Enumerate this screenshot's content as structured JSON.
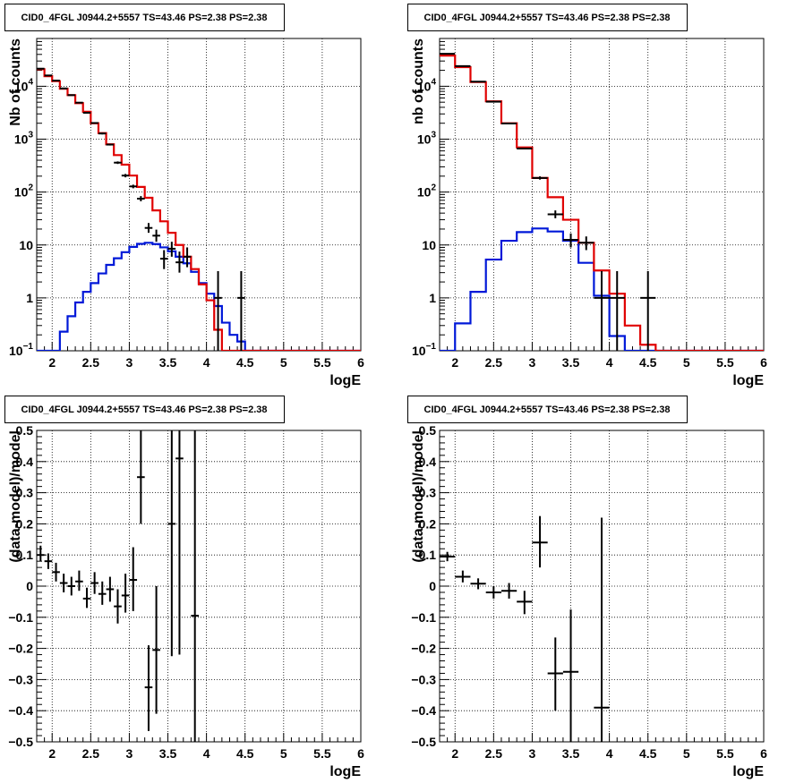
{
  "colors": {
    "background": "#ffffff",
    "frame": "#000000",
    "grid": "#000000",
    "data_points": "#000000",
    "total_model": "#e00000",
    "source_model": "#0018d8"
  },
  "chart_data": [
    {
      "type": "line",
      "title": "CID0_4FGL J0944.2+5557 TS=43.46 PS=2.38 PS=2.38",
      "xlabel": "logE",
      "ylabel": "Nb of counts",
      "xlim": [
        1.8,
        6.0
      ],
      "ylim": [
        0.1,
        80000
      ],
      "yscale": "log",
      "grid": true,
      "xticks": [
        2,
        2.5,
        3,
        3.5,
        4,
        4.5,
        5,
        5.5,
        6
      ],
      "xtick_labels": [
        "2",
        "2.5",
        "3",
        "3.5",
        "4",
        "4.5",
        "5",
        "5.5",
        "6"
      ],
      "yticks": [
        0.1,
        1,
        10,
        100,
        1000,
        10000
      ],
      "ytick_labels": [
        {
          "base": "10",
          "exp": "−1"
        },
        {
          "base": "1",
          "exp": ""
        },
        {
          "base": "10",
          "exp": ""
        },
        {
          "base": "10",
          "exp": "2"
        },
        {
          "base": "10",
          "exp": "3"
        },
        {
          "base": "10",
          "exp": "4"
        }
      ],
      "bin_edges": [
        1.8,
        1.9,
        2.0,
        2.1,
        2.2,
        2.3,
        2.4,
        2.5,
        2.6,
        2.7,
        2.8,
        2.9,
        3.0,
        3.1,
        3.2,
        3.3,
        3.4,
        3.5,
        3.6,
        3.7,
        3.8,
        3.9,
        4.0,
        4.1,
        4.2,
        4.3,
        4.4,
        4.5,
        4.6,
        4.7,
        4.8,
        4.9,
        5.0,
        5.1,
        5.2,
        5.3,
        5.4,
        5.5,
        5.6,
        5.7,
        5.8,
        5.9,
        6.0
      ],
      "series": [
        {
          "role": "total_model",
          "values": [
            21000,
            15500,
            12500,
            9000,
            6800,
            4800,
            3300,
            2000,
            1300,
            800,
            500,
            330,
            205,
            125,
            78,
            45,
            28,
            17,
            10,
            6,
            3.5,
            1.8,
            0.9,
            0.25,
            0.1,
            0.1,
            0.1,
            0.1,
            0.1,
            0.1,
            0.1,
            0.1,
            0.1,
            0.1,
            0.1,
            0.1,
            0.1,
            0.1,
            0.1,
            0.1,
            0.1,
            0.1
          ]
        },
        {
          "role": "source_model",
          "values": [
            0.1,
            0.1,
            0.1,
            0.23,
            0.45,
            0.82,
            1.3,
            1.9,
            2.9,
            4.2,
            5.6,
            7.3,
            9.2,
            10.5,
            11,
            10.4,
            9,
            7.6,
            6,
            4.5,
            3.1,
            1.9,
            1.2,
            0.7,
            0.34,
            0.2,
            0.15,
            0.1,
            0.1,
            0.1,
            0.1,
            0.1,
            0.1,
            0.1,
            0.1,
            0.1,
            0.1,
            0.1,
            0.1,
            0.1,
            0.1,
            0.1
          ]
        }
      ],
      "points": [
        {
          "x": 1.85,
          "xerr": 0.05,
          "y": 21500,
          "ylo": 21200,
          "yhi": 21800
        },
        {
          "x": 1.95,
          "xerr": 0.05,
          "y": 16000,
          "ylo": 15700,
          "yhi": 16300
        },
        {
          "x": 2.05,
          "xerr": 0.05,
          "y": 12800,
          "ylo": 12500,
          "yhi": 13100
        },
        {
          "x": 2.15,
          "xerr": 0.05,
          "y": 9100,
          "ylo": 8900,
          "yhi": 9300
        },
        {
          "x": 2.25,
          "xerr": 0.05,
          "y": 6800,
          "ylo": 6650,
          "yhi": 6950
        },
        {
          "x": 2.35,
          "xerr": 0.05,
          "y": 4900,
          "ylo": 4780,
          "yhi": 5020
        },
        {
          "x": 2.45,
          "xerr": 0.05,
          "y": 3150,
          "ylo": 3050,
          "yhi": 3250
        },
        {
          "x": 2.55,
          "xerr": 0.05,
          "y": 2020,
          "ylo": 1950,
          "yhi": 2090
        },
        {
          "x": 2.65,
          "xerr": 0.05,
          "y": 1280,
          "ylo": 1230,
          "yhi": 1330
        },
        {
          "x": 2.75,
          "xerr": 0.05,
          "y": 790,
          "ylo": 760,
          "yhi": 820
        },
        {
          "x": 2.85,
          "xerr": 0.05,
          "y": 360,
          "ylo": 340,
          "yhi": 380
        },
        {
          "x": 2.95,
          "xerr": 0.05,
          "y": 205,
          "ylo": 190,
          "yhi": 220
        },
        {
          "x": 3.05,
          "xerr": 0.05,
          "y": 128,
          "ylo": 118,
          "yhi": 138
        },
        {
          "x": 3.15,
          "xerr": 0.05,
          "y": 75,
          "ylo": 67,
          "yhi": 84
        },
        {
          "x": 3.25,
          "xerr": 0.05,
          "y": 21,
          "ylo": 17,
          "yhi": 26
        },
        {
          "x": 3.35,
          "xerr": 0.05,
          "y": 15,
          "ylo": 11.5,
          "yhi": 19.5
        },
        {
          "x": 3.45,
          "xerr": 0.05,
          "y": 5.5,
          "ylo": 3.5,
          "yhi": 8.0
        },
        {
          "x": 3.55,
          "xerr": 0.05,
          "y": 8.5,
          "ylo": 6.0,
          "yhi": 11.5
        },
        {
          "x": 3.65,
          "xerr": 0.05,
          "y": 4.7,
          "ylo": 3.0,
          "yhi": 7.5
        },
        {
          "x": 3.75,
          "xerr": 0.05,
          "y": 6.0,
          "ylo": 3.8,
          "yhi": 9.0
        },
        {
          "x": 4.15,
          "xerr": 0.05,
          "y": 1.0,
          "ylo": 0.1,
          "yhi": 3.2
        },
        {
          "x": 4.45,
          "xerr": 0.05,
          "y": 1.0,
          "ylo": 0.1,
          "yhi": 3.2
        }
      ]
    },
    {
      "type": "line",
      "title": "CID0_4FGL J0944.2+5557 TS=43.46 PS=2.38 PS=2.38",
      "xlabel": "logE",
      "ylabel": "nb of counts",
      "xlim": [
        1.8,
        6.0
      ],
      "ylim": [
        0.1,
        80000
      ],
      "yscale": "log",
      "grid": true,
      "xticks": [
        2,
        2.5,
        3,
        3.5,
        4,
        4.5,
        5,
        5.5,
        6
      ],
      "xtick_labels": [
        "2",
        "2.5",
        "3",
        "3.5",
        "4",
        "4.5",
        "5",
        "5.5",
        "6"
      ],
      "yticks": [
        0.1,
        1,
        10,
        100,
        1000,
        10000
      ],
      "ytick_labels": [
        {
          "base": "10",
          "exp": "−1"
        },
        {
          "base": "1",
          "exp": ""
        },
        {
          "base": "10",
          "exp": ""
        },
        {
          "base": "10",
          "exp": "2"
        },
        {
          "base": "10",
          "exp": "3"
        },
        {
          "base": "10",
          "exp": "4"
        }
      ],
      "bin_edges": [
        1.8,
        2.0,
        2.2,
        2.4,
        2.6,
        2.8,
        3.0,
        3.2,
        3.4,
        3.6,
        3.8,
        4.0,
        4.2,
        4.4,
        4.6,
        4.8,
        5.0,
        5.2,
        5.4,
        5.6,
        5.8,
        6.0
      ],
      "series": [
        {
          "role": "total_model",
          "values": [
            38000,
            23000,
            12000,
            5200,
            2000,
            700,
            185,
            80,
            30,
            11,
            3.3,
            1.2,
            0.3,
            0.13,
            0.1,
            0.1,
            0.1,
            0.1,
            0.1,
            0.1,
            0.1
          ]
        },
        {
          "role": "source_model",
          "values": [
            0.1,
            0.33,
            1.3,
            5.3,
            12,
            17.5,
            20.5,
            18,
            12,
            4.6,
            1.1,
            0.19,
            0.1,
            0.1,
            0.1,
            0.1,
            0.1,
            0.1,
            0.1,
            0.1,
            0.1
          ]
        }
      ],
      "points": [
        {
          "x": 1.9,
          "xerr": 0.1,
          "y": 41000,
          "ylo": 40500,
          "yhi": 41500
        },
        {
          "x": 2.1,
          "xerr": 0.1,
          "y": 24000,
          "ylo": 23700,
          "yhi": 24300
        },
        {
          "x": 2.3,
          "xerr": 0.1,
          "y": 12200,
          "ylo": 12000,
          "yhi": 12400
        },
        {
          "x": 2.5,
          "xerr": 0.1,
          "y": 5100,
          "ylo": 5000,
          "yhi": 5200
        },
        {
          "x": 2.7,
          "xerr": 0.1,
          "y": 1980,
          "ylo": 1930,
          "yhi": 2030
        },
        {
          "x": 2.9,
          "xerr": 0.1,
          "y": 665,
          "ylo": 640,
          "yhi": 690
        },
        {
          "x": 3.1,
          "xerr": 0.1,
          "y": 185,
          "ylo": 172,
          "yhi": 198
        },
        {
          "x": 3.3,
          "xerr": 0.1,
          "y": 38,
          "ylo": 32,
          "yhi": 45
        },
        {
          "x": 3.5,
          "xerr": 0.1,
          "y": 12.5,
          "ylo": 9,
          "yhi": 16.5
        },
        {
          "x": 3.7,
          "xerr": 0.1,
          "y": 11,
          "ylo": 8,
          "yhi": 14.5
        },
        {
          "x": 3.9,
          "xerr": 0.1,
          "y": 1.0,
          "ylo": 0.1,
          "yhi": 3.2
        },
        {
          "x": 4.1,
          "xerr": 0.1,
          "y": 1.0,
          "ylo": 0.1,
          "yhi": 3.2
        },
        {
          "x": 4.5,
          "xerr": 0.1,
          "y": 1.0,
          "ylo": 0.1,
          "yhi": 3.2
        }
      ]
    },
    {
      "type": "scatter",
      "title": "CID0_4FGL J0944.2+5557 TS=43.46 PS=2.38 PS=2.38",
      "xlabel": "logE",
      "ylabel": "(data-model)/model",
      "xlim": [
        1.8,
        6.0
      ],
      "ylim": [
        -0.5,
        0.5
      ],
      "yscale": "linear",
      "grid": true,
      "xticks": [
        2,
        2.5,
        3,
        3.5,
        4,
        4.5,
        5,
        5.5,
        6
      ],
      "xtick_labels": [
        "2",
        "2.5",
        "3",
        "3.5",
        "4",
        "4.5",
        "5",
        "5.5",
        "6"
      ],
      "yticks": [
        -0.5,
        -0.4,
        -0.3,
        -0.2,
        -0.1,
        0,
        0.1,
        0.2,
        0.3,
        0.4,
        0.5
      ],
      "ytick_labels": [
        "−0.5",
        "−0.4",
        "−0.3",
        "−0.2",
        "−0.1",
        "0",
        "0.1",
        "0.2",
        "0.3",
        "0.4",
        "0.5"
      ],
      "points": [
        {
          "x": 1.85,
          "xerr": 0.05,
          "y": 0.1,
          "ylo": 0.08,
          "yhi": 0.13
        },
        {
          "x": 1.95,
          "xerr": 0.05,
          "y": 0.08,
          "ylo": 0.055,
          "yhi": 0.105
        },
        {
          "x": 2.05,
          "xerr": 0.05,
          "y": 0.045,
          "ylo": 0.015,
          "yhi": 0.075
        },
        {
          "x": 2.15,
          "xerr": 0.05,
          "y": 0.01,
          "ylo": -0.02,
          "yhi": 0.04
        },
        {
          "x": 2.25,
          "xerr": 0.05,
          "y": 0.0,
          "ylo": -0.03,
          "yhi": 0.03
        },
        {
          "x": 2.35,
          "xerr": 0.05,
          "y": 0.015,
          "ylo": -0.015,
          "yhi": 0.05
        },
        {
          "x": 2.45,
          "xerr": 0.05,
          "y": -0.04,
          "ylo": -0.07,
          "yhi": -0.005
        },
        {
          "x": 2.55,
          "xerr": 0.05,
          "y": 0.01,
          "ylo": -0.025,
          "yhi": 0.045
        },
        {
          "x": 2.65,
          "xerr": 0.05,
          "y": -0.025,
          "ylo": -0.06,
          "yhi": 0.015
        },
        {
          "x": 2.75,
          "xerr": 0.05,
          "y": -0.01,
          "ylo": -0.05,
          "yhi": 0.03
        },
        {
          "x": 2.85,
          "xerr": 0.05,
          "y": -0.065,
          "ylo": -0.12,
          "yhi": -0.01
        },
        {
          "x": 2.95,
          "xerr": 0.05,
          "y": -0.03,
          "ylo": -0.085,
          "yhi": 0.04
        },
        {
          "x": 3.05,
          "xerr": 0.05,
          "y": 0.02,
          "ylo": -0.08,
          "yhi": 0.125
        },
        {
          "x": 3.15,
          "xerr": 0.05,
          "y": 0.35,
          "ylo": 0.2,
          "yhi": 0.5
        },
        {
          "x": 3.25,
          "xerr": 0.05,
          "y": -0.325,
          "ylo": -0.465,
          "yhi": -0.19
        },
        {
          "x": 3.35,
          "xerr": 0.05,
          "y": -0.205,
          "ylo": -0.41,
          "yhi": 0.0
        },
        {
          "x": 3.55,
          "xerr": 0.05,
          "y": 0.2,
          "ylo": -0.225,
          "yhi": 0.5
        },
        {
          "x": 3.65,
          "xerr": 0.05,
          "y": 0.41,
          "ylo": -0.22,
          "yhi": 0.5
        },
        {
          "x": 3.85,
          "xerr": 0.05,
          "y": -0.095,
          "ylo": -0.5,
          "yhi": 0.5
        }
      ]
    },
    {
      "type": "scatter",
      "title": "CID0_4FGL J0944.2+5557 TS=43.46 PS=2.38 PS=2.38",
      "xlabel": "logE",
      "ylabel": "(data-model)/model",
      "xlim": [
        1.8,
        6.0
      ],
      "ylim": [
        -0.5,
        0.5
      ],
      "yscale": "linear",
      "grid": true,
      "xticks": [
        2,
        2.5,
        3,
        3.5,
        4,
        4.5,
        5,
        5.5,
        6
      ],
      "xtick_labels": [
        "2",
        "2.5",
        "3",
        "3.5",
        "4",
        "4.5",
        "5",
        "5.5",
        "6"
      ],
      "yticks": [
        -0.5,
        -0.4,
        -0.3,
        -0.2,
        -0.1,
        0,
        0.1,
        0.2,
        0.3,
        0.4,
        0.5
      ],
      "ytick_labels": [
        "−0.5",
        "−0.4",
        "−0.3",
        "−0.2",
        "−0.1",
        "0",
        "0.1",
        "0.2",
        "0.3",
        "0.4",
        "0.5"
      ],
      "points": [
        {
          "x": 1.9,
          "xerr": 0.1,
          "y": 0.095,
          "ylo": 0.08,
          "yhi": 0.11
        },
        {
          "x": 2.1,
          "xerr": 0.1,
          "y": 0.03,
          "ylo": 0.012,
          "yhi": 0.05
        },
        {
          "x": 2.3,
          "xerr": 0.1,
          "y": 0.008,
          "ylo": -0.01,
          "yhi": 0.025
        },
        {
          "x": 2.5,
          "xerr": 0.1,
          "y": -0.02,
          "ylo": -0.04,
          "yhi": 0.0
        },
        {
          "x": 2.7,
          "xerr": 0.1,
          "y": -0.015,
          "ylo": -0.04,
          "yhi": 0.01
        },
        {
          "x": 2.9,
          "xerr": 0.1,
          "y": -0.05,
          "ylo": -0.09,
          "yhi": -0.015
        },
        {
          "x": 3.1,
          "xerr": 0.1,
          "y": 0.14,
          "ylo": 0.06,
          "yhi": 0.225
        },
        {
          "x": 3.3,
          "xerr": 0.1,
          "y": -0.28,
          "ylo": -0.4,
          "yhi": -0.165
        },
        {
          "x": 3.5,
          "xerr": 0.1,
          "y": -0.275,
          "ylo": -0.5,
          "yhi": -0.075
        },
        {
          "x": 3.9,
          "xerr": 0.1,
          "y": -0.39,
          "ylo": -0.5,
          "yhi": 0.22
        }
      ]
    }
  ]
}
